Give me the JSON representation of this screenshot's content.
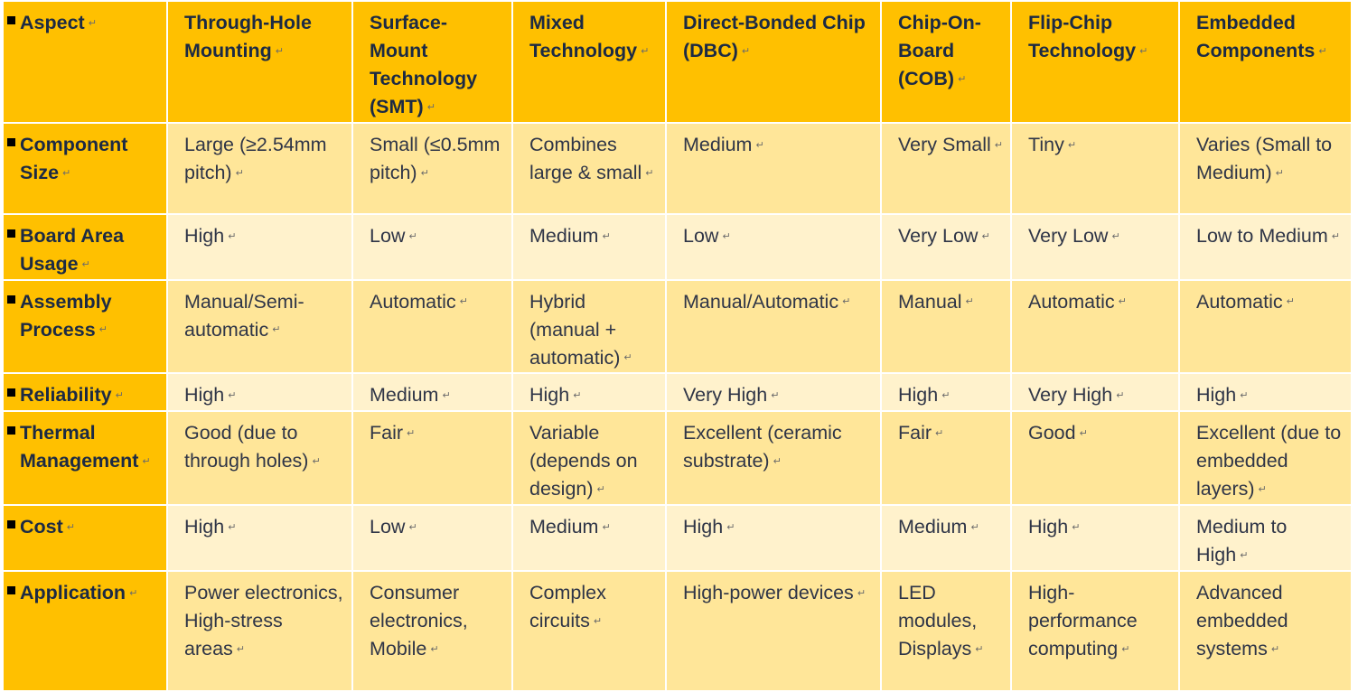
{
  "table": {
    "header": {
      "aspect": "Aspect",
      "columns": [
        "Through-Hole Mounting",
        "Surface-Mount Technology (SMT)",
        "Mixed Technology",
        "Direct-Bonded Chip (DBC)",
        "Chip-On-Board (COB)",
        "Flip-Chip Technology",
        "Embedded Components"
      ]
    },
    "rows": [
      {
        "aspect": "Component Size",
        "cells": [
          "Large (≥2.54mm pitch)",
          "Small (≤0.5mm pitch)",
          "Combines large & small",
          "Medium",
          "Very Small",
          "Tiny",
          "Varies (Small to Medium)"
        ]
      },
      {
        "aspect": "Board Area Usage",
        "cells": [
          "High",
          "Low",
          "Medium",
          "Low",
          "Very Low",
          "Very Low",
          "Low to Medium"
        ]
      },
      {
        "aspect": "Assembly Process",
        "cells": [
          "Manual/Semi-automatic",
          "Automatic",
          "Hybrid (manual + automatic)",
          "Manual/Automatic",
          "Manual",
          "Automatic",
          "Automatic"
        ]
      },
      {
        "aspect": "Reliability",
        "cells": [
          "High",
          "Medium",
          "High",
          "Very High",
          "High",
          "Very High",
          "High"
        ]
      },
      {
        "aspect": "Thermal Management",
        "cells": [
          "Good (due to through holes)",
          "Fair",
          "Variable (depends on design)",
          "Excellent (ceramic substrate)",
          "Fair",
          "Good",
          "Excellent (due to embedded layers)"
        ]
      },
      {
        "aspect": "Cost",
        "cells": [
          "High",
          "Low",
          "Medium",
          "High",
          "Medium",
          "High",
          "Medium to High"
        ]
      },
      {
        "aspect": "Application",
        "cells": [
          "Power electronics, High-stress areas",
          "Consumer electronics, Mobile",
          "Complex circuits",
          "High-power devices",
          "LED modules, Displays",
          "High-performance computing",
          "Advanced embedded systems"
        ]
      }
    ]
  },
  "colors": {
    "header_bg": "#ffc000",
    "row_band_dark": "#ffe699",
    "row_band_light": "#fff2cc",
    "text": "#2f3547"
  }
}
